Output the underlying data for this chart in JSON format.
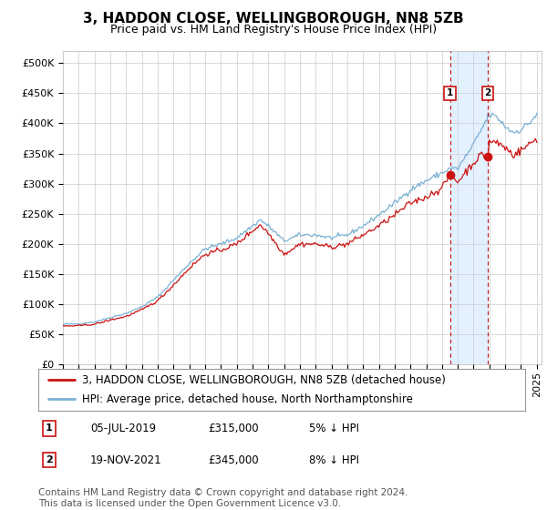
{
  "title": "3, HADDON CLOSE, WELLINGBOROUGH, NN8 5ZB",
  "subtitle": "Price paid vs. HM Land Registry's House Price Index (HPI)",
  "ylabel_ticks": [
    "£0",
    "£50K",
    "£100K",
    "£150K",
    "£200K",
    "£250K",
    "£300K",
    "£350K",
    "£400K",
    "£450K",
    "£500K"
  ],
  "ytick_values": [
    0,
    50000,
    100000,
    150000,
    200000,
    250000,
    300000,
    350000,
    400000,
    450000,
    500000
  ],
  "ylim": [
    0,
    520000
  ],
  "xlim_start": 1995.0,
  "xlim_end": 2025.3,
  "line1_color": "#cc1111",
  "line2_color": "#7ab0d4",
  "fill_color": "#ddeeff",
  "point1_date": "05-JUL-2019",
  "point1_price": 315000,
  "point1_pct": "5% ↓ HPI",
  "point1_x": 2019.5,
  "point2_date": "19-NOV-2021",
  "point2_price": 345000,
  "point2_pct": "8% ↓ HPI",
  "point2_x": 2021.88,
  "legend1_label": "3, HADDON CLOSE, WELLINGBOROUGH, NN8 5ZB (detached house)",
  "legend2_label": "HPI: Average price, detached house, North Northamptonshire",
  "footer": "Contains HM Land Registry data © Crown copyright and database right 2024.\nThis data is licensed under the Open Government Licence v3.0.",
  "bg_color": "#ffffff",
  "grid_color": "#cccccc",
  "title_fontsize": 11,
  "subtitle_fontsize": 9,
  "axis_fontsize": 8,
  "legend_fontsize": 8.5,
  "footer_fontsize": 7.5
}
